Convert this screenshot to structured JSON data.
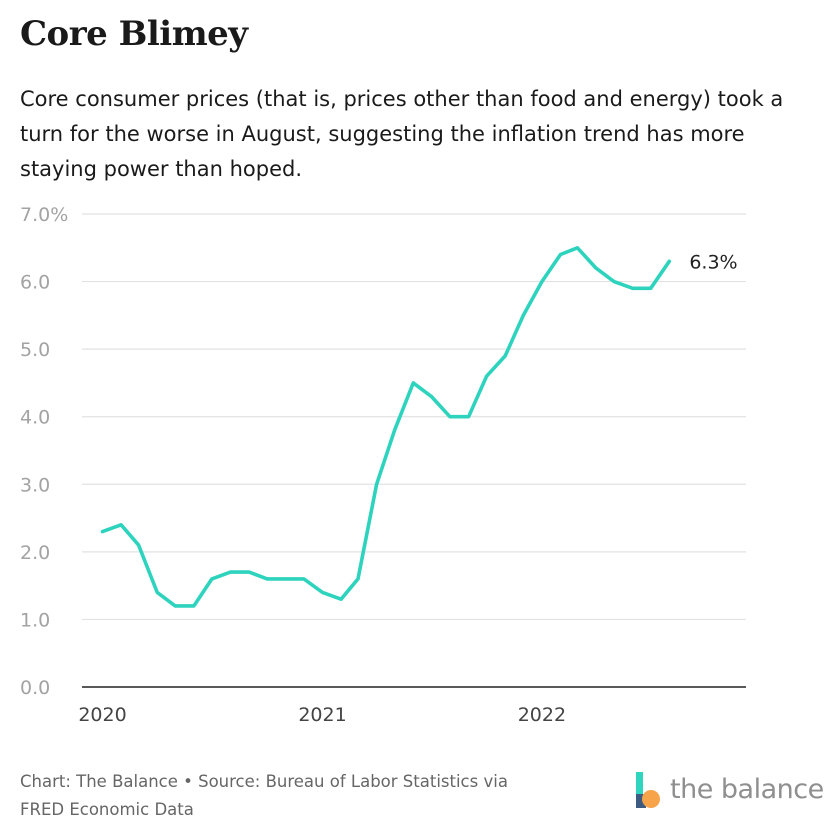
{
  "header": {
    "title": "Core Blimey",
    "subtitle": "Core consumer prices (that is, prices other than food and energy) took a turn for the worse in August, suggesting the inflation trend has more staying power than hoped."
  },
  "footer": {
    "credit_line_1": "Chart: The Balance • Source: Bureau of Labor Statistics via",
    "credit_line_2": "FRED Economic Data"
  },
  "brand": {
    "logo_text": "the balance",
    "colors": {
      "teal": "#2fd6bf",
      "orange": "#f7a34a",
      "blue": "#3d5a80",
      "text": "#8f8f8f"
    }
  },
  "chart_data": {
    "type": "line",
    "title": "",
    "xlabel": "",
    "ylabel": "",
    "ylim": [
      0,
      7
    ],
    "y_ticks": [
      0,
      1,
      2,
      3,
      4,
      5,
      6,
      7
    ],
    "y_tick_labels": [
      "0.0",
      "1.0",
      "2.0",
      "3.0",
      "4.0",
      "5.0",
      "6.0",
      "7.0%"
    ],
    "x_ticks": [
      "2020-01",
      "2021-01",
      "2022-01"
    ],
    "x_tick_labels": [
      "2020",
      "2021",
      "2022"
    ],
    "grid": "horizontal",
    "line_color": "#2ed3bd",
    "end_label": "6.3%",
    "series": [
      {
        "x": [
          "2020-01",
          "2020-02",
          "2020-03",
          "2020-04",
          "2020-05",
          "2020-06",
          "2020-07",
          "2020-08",
          "2020-09",
          "2020-10",
          "2020-11",
          "2020-12",
          "2021-01",
          "2021-02",
          "2021-03",
          "2021-04",
          "2021-05",
          "2021-06",
          "2021-07",
          "2021-08",
          "2021-09",
          "2021-10",
          "2021-11",
          "2021-12",
          "2022-01",
          "2022-02",
          "2022-03",
          "2022-04",
          "2022-05",
          "2022-06",
          "2022-07",
          "2022-08"
        ],
        "values": [
          2.3,
          2.4,
          2.1,
          1.4,
          1.2,
          1.2,
          1.6,
          1.7,
          1.7,
          1.6,
          1.6,
          1.6,
          1.4,
          1.3,
          1.6,
          3.0,
          3.8,
          4.5,
          4.3,
          4.0,
          4.0,
          4.6,
          4.9,
          5.5,
          6.0,
          6.4,
          6.5,
          6.2,
          6.0,
          5.9,
          5.9,
          6.3
        ]
      }
    ]
  }
}
